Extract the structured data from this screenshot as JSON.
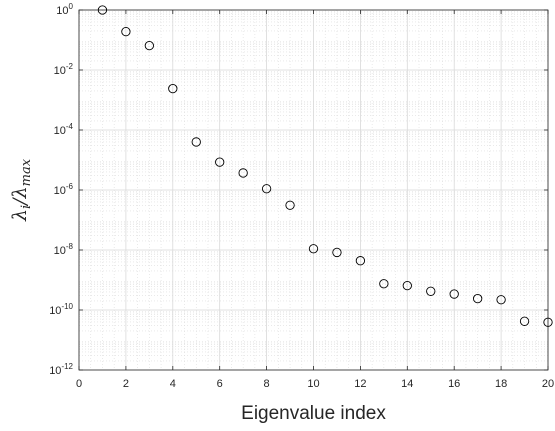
{
  "chart_data": {
    "type": "scatter",
    "xlabel": "Eigenvalue index",
    "ylabel": {
      "main": "λ",
      "sub1": "i",
      "slash": "/λ",
      "sub2": "max"
    },
    "xlim": [
      0,
      20
    ],
    "ylim_log10": [
      -12,
      0
    ],
    "yscale": "log",
    "grid": true,
    "minor_grid": true,
    "marker": "open-circle",
    "x_ticks": [
      {
        "value": 0,
        "label": "0"
      },
      {
        "value": 2,
        "label": "2"
      },
      {
        "value": 4,
        "label": "4"
      },
      {
        "value": 6,
        "label": "6"
      },
      {
        "value": 8,
        "label": "8"
      },
      {
        "value": 10,
        "label": "10"
      },
      {
        "value": 12,
        "label": "12"
      },
      {
        "value": 14,
        "label": "14"
      },
      {
        "value": 16,
        "label": "16"
      },
      {
        "value": 18,
        "label": "18"
      },
      {
        "value": 20,
        "label": "20"
      }
    ],
    "y_ticks": [
      {
        "exp": 0,
        "base": "10",
        "sup": "0"
      },
      {
        "exp": -2,
        "base": "10",
        "sup": "-2"
      },
      {
        "exp": -4,
        "base": "10",
        "sup": "-4"
      },
      {
        "exp": -6,
        "base": "10",
        "sup": "-6"
      },
      {
        "exp": -8,
        "base": "10",
        "sup": "-8"
      },
      {
        "exp": -10,
        "base": "10",
        "sup": "-10"
      },
      {
        "exp": -12,
        "base": "10",
        "sup": "-12"
      }
    ],
    "points": [
      {
        "x": 1,
        "y": 1.0
      },
      {
        "x": 2,
        "y": 0.19
      },
      {
        "x": 3,
        "y": 0.065
      },
      {
        "x": 4,
        "y": 0.0024
      },
      {
        "x": 5,
        "y": 4e-05
      },
      {
        "x": 6,
        "y": 8.5e-06
      },
      {
        "x": 7,
        "y": 3.7e-06
      },
      {
        "x": 8,
        "y": 1.1e-06
      },
      {
        "x": 9,
        "y": 3.1e-07
      },
      {
        "x": 10,
        "y": 1.1e-08
      },
      {
        "x": 11,
        "y": 8.3e-09
      },
      {
        "x": 12,
        "y": 4.4e-09
      },
      {
        "x": 13,
        "y": 7.5e-10
      },
      {
        "x": 14,
        "y": 6.5e-10
      },
      {
        "x": 15,
        "y": 4.2e-10
      },
      {
        "x": 16,
        "y": 3.4e-10
      },
      {
        "x": 17,
        "y": 2.4e-10
      },
      {
        "x": 18,
        "y": 2.2e-10
      },
      {
        "x": 19,
        "y": 4.2e-11
      },
      {
        "x": 20,
        "y": 3.9e-11
      }
    ]
  }
}
